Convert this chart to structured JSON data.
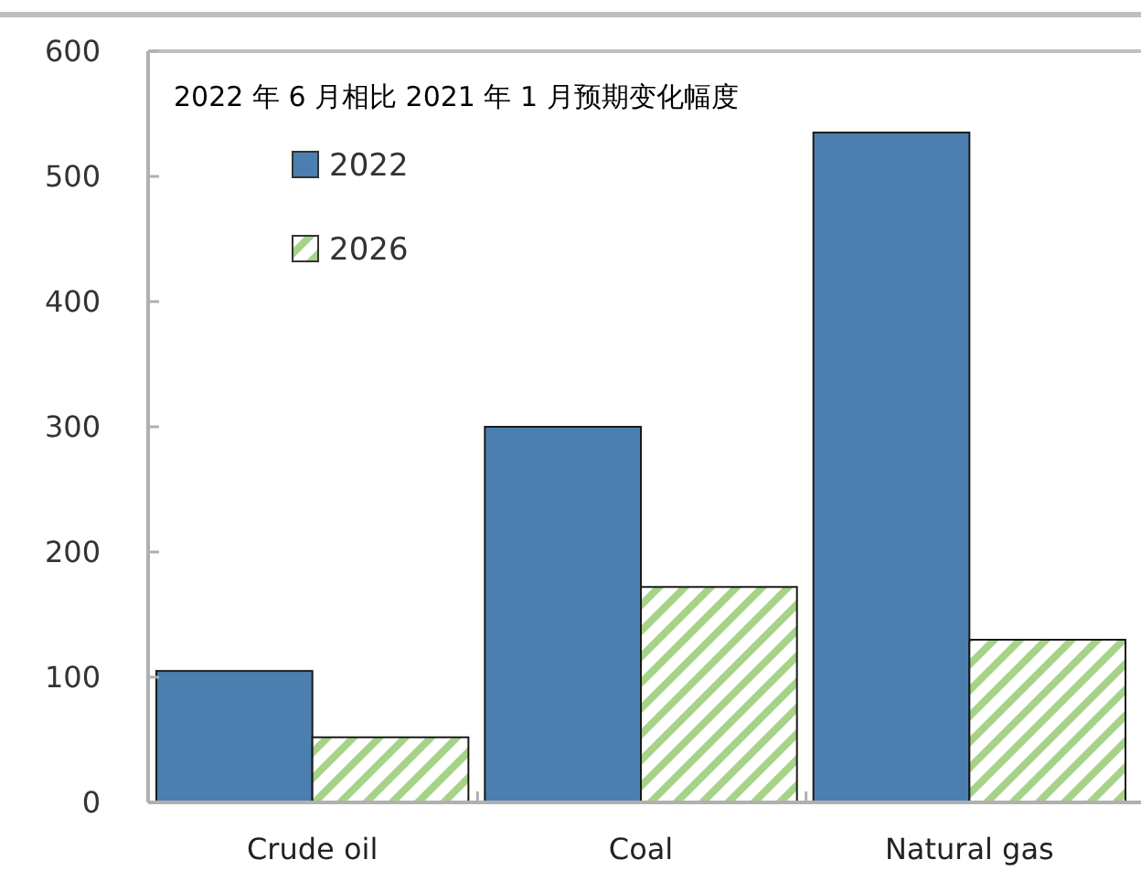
{
  "chart_data": {
    "type": "bar",
    "title": "2022 年 6 月相比 2021 年 1 月预期变化幅度",
    "categories": [
      "Crude oil",
      "Coal",
      "Natural gas"
    ],
    "series": [
      {
        "name": "2022",
        "color": "#4a7fb0",
        "values": [
          105,
          300,
          535
        ]
      },
      {
        "name": "2026",
        "color": "#a6d387",
        "values": [
          52,
          172,
          130
        ]
      }
    ],
    "ylim": [
      0,
      600
    ],
    "yticks": [
      0,
      100,
      200,
      300,
      400,
      500,
      600
    ],
    "grid": false,
    "legend": "top left"
  }
}
